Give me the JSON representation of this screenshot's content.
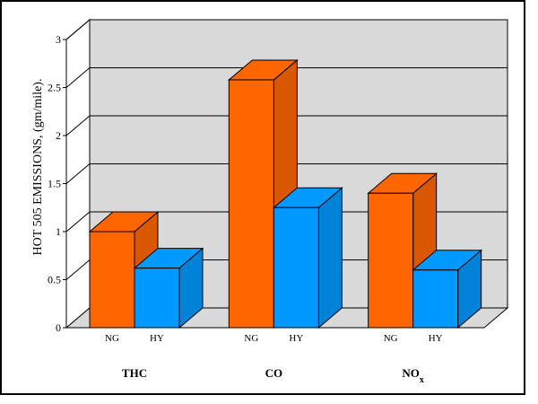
{
  "chart_data": {
    "type": "bar",
    "ylabel": "HOT 505 EMISSIONS, (gm/mile).",
    "ylim": [
      0,
      3
    ],
    "yticks": [
      "0",
      "0.5",
      "1",
      "1.5",
      "2",
      "2.5",
      "3"
    ],
    "categories": [
      "THC",
      "CO",
      "NO"
    ],
    "category_subscripts": [
      "",
      "",
      "x"
    ],
    "series": [
      {
        "name": "NG",
        "color": "#ff6600",
        "values": [
          1.0,
          2.58,
          1.4
        ]
      },
      {
        "name": "HY",
        "color": "#0099ff",
        "values": [
          0.62,
          1.25,
          0.6
        ]
      }
    ],
    "wall_color": "#d9d9d9",
    "grid": true
  }
}
